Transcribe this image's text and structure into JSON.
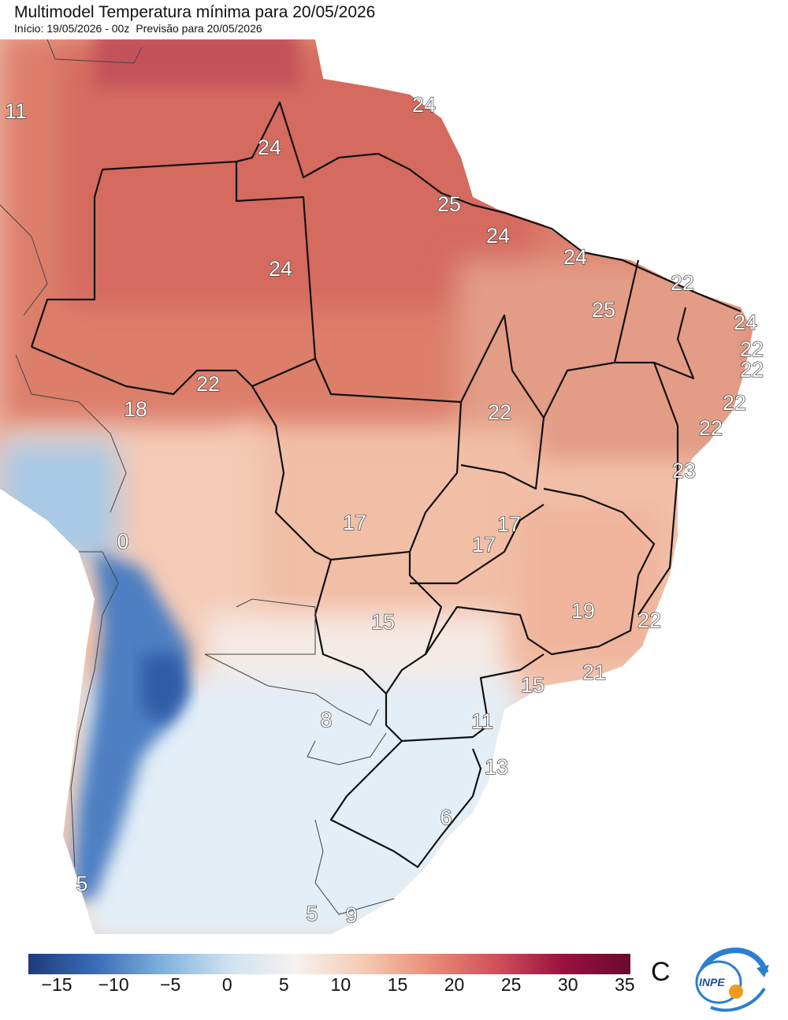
{
  "header": {
    "title": "Multimodel Temperatura mínima para 20/05/2026",
    "init": "Início: 19/05/2026 - 00z",
    "forecast": "Previsão para 20/05/2026"
  },
  "map_labels": [
    {
      "name": "label-11-colombia",
      "text": "11"
    },
    {
      "name": "label-24-roraima",
      "text": "24"
    },
    {
      "name": "label-24-amapa",
      "text": "24"
    },
    {
      "name": "label-25-marajo",
      "text": "25"
    },
    {
      "name": "label-24-belem",
      "text": "24"
    },
    {
      "name": "label-24-maranhao-coast",
      "text": "24"
    },
    {
      "name": "label-24-amazonas",
      "text": "24"
    },
    {
      "name": "label-22-ceara",
      "text": "22"
    },
    {
      "name": "label-25-piaui",
      "text": "25"
    },
    {
      "name": "label-24-rio-grande-do-norte",
      "text": "24"
    },
    {
      "name": "label-22-paraiba",
      "text": "22"
    },
    {
      "name": "label-22-pernambuco",
      "text": "22"
    },
    {
      "name": "label-22-rondonia",
      "text": "22"
    },
    {
      "name": "label-18-acre",
      "text": "18"
    },
    {
      "name": "label-22-tocantins",
      "text": "22"
    },
    {
      "name": "label-22-alagoas",
      "text": "22"
    },
    {
      "name": "label-22-sergipe",
      "text": "22"
    },
    {
      "name": "label-23-bahia-coast",
      "text": "23"
    },
    {
      "name": "label-17-mato-grosso",
      "text": "17"
    },
    {
      "name": "label-17-distrito-federal",
      "text": "17"
    },
    {
      "name": "label-17-goias",
      "text": "17"
    },
    {
      "name": "label-0-andes",
      "text": "0"
    },
    {
      "name": "label-15-mato-grosso-do-sul",
      "text": "15"
    },
    {
      "name": "label-19-minas-gerais",
      "text": "19"
    },
    {
      "name": "label-22-espirito-santo",
      "text": "22"
    },
    {
      "name": "label-21-rio-de-janeiro",
      "text": "21"
    },
    {
      "name": "label-15-sao-paulo",
      "text": "15"
    },
    {
      "name": "label-8-paraguay",
      "text": "8"
    },
    {
      "name": "label-11-parana",
      "text": "11"
    },
    {
      "name": "label-13-santa-catarina",
      "text": "13"
    },
    {
      "name": "label-6-porto-alegre",
      "text": "6"
    },
    {
      "name": "label-5-chile",
      "text": "5"
    },
    {
      "name": "label-5-uruguay",
      "text": "5"
    },
    {
      "name": "label-9-uruguay",
      "text": "9"
    }
  ],
  "colorbar": {
    "ticks": [
      "−15",
      "−10",
      "−5",
      "0",
      "5",
      "10",
      "15",
      "20",
      "25",
      "30",
      "35"
    ],
    "range": [
      -17.5,
      35.5
    ],
    "unit": "C",
    "colors": [
      "#1e3a7a",
      "#3a6cb8",
      "#7fb0dc",
      "#cfe2f1",
      "#f6f2ef",
      "#f6cbb4",
      "#e98e78",
      "#d0505a",
      "#9a1040",
      "#6a0a2e"
    ]
  },
  "logo": {
    "text": "INPE"
  }
}
